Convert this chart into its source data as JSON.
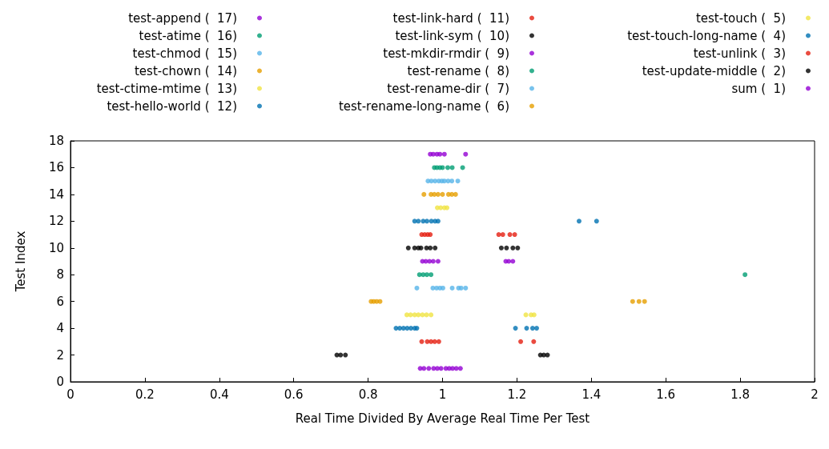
{
  "chart_data": {
    "type": "scatter",
    "xlabel": "Real Time Divided By Average Real Time Per Test",
    "ylabel": "Test Index",
    "xlim": [
      0,
      2
    ],
    "ylim": [
      0,
      18
    ],
    "xticks": [
      0,
      0.2,
      0.4,
      0.6,
      0.8,
      1,
      1.2,
      1.4,
      1.6,
      1.8,
      2
    ],
    "yticks": [
      0,
      2,
      4,
      6,
      8,
      10,
      12,
      14,
      16,
      18
    ],
    "grid": false,
    "legend": "top",
    "marker": "circle",
    "series": [
      {
        "name": "test-append (  17)",
        "color": "#9400d3",
        "x": [
          0.967,
          0.975,
          0.985,
          0.993,
          1.005,
          1.062
        ],
        "values": [
          17,
          17,
          17,
          17,
          17,
          17
        ]
      },
      {
        "name": "test-atime (  16)",
        "color": "#009e73",
        "x": [
          0.978,
          0.985,
          0.993,
          1.0,
          1.014,
          1.026,
          1.054
        ],
        "values": [
          16,
          16,
          16,
          16,
          16,
          16,
          16
        ]
      },
      {
        "name": "test-chmod (  15)",
        "color": "#56b4e9",
        "x": [
          0.961,
          0.97,
          0.98,
          0.99,
          0.998,
          1.005,
          1.015,
          1.025,
          1.041
        ],
        "values": [
          15,
          15,
          15,
          15,
          15,
          15,
          15,
          15,
          15
        ]
      },
      {
        "name": "test-chown (  14)",
        "color": "#e69f00",
        "x": [
          0.95,
          0.969,
          0.978,
          0.988,
          1.0,
          1.016,
          1.025,
          1.035
        ],
        "values": [
          14,
          14,
          14,
          14,
          14,
          14,
          14,
          14
        ]
      },
      {
        "name": "test-ctime-mtime (  13)",
        "color": "#f0e442",
        "x": [
          0.986,
          0.995,
          1.005,
          1.012
        ],
        "values": [
          13,
          13,
          13,
          13
        ]
      },
      {
        "name": "test-hello-world (  12)",
        "color": "#0072b2",
        "x": [
          0.925,
          0.935,
          0.948,
          0.958,
          0.97,
          0.98,
          0.988,
          1.367,
          1.414
        ],
        "values": [
          12,
          12,
          12,
          12,
          12,
          12,
          12,
          12,
          12
        ]
      },
      {
        "name": "test-link-hard (  11)",
        "color": "#e51e10",
        "x": [
          0.944,
          0.952,
          0.96,
          0.967,
          1.151,
          1.162,
          1.181,
          1.194
        ],
        "values": [
          11,
          11,
          11,
          11,
          11,
          11,
          11,
          11
        ]
      },
      {
        "name": "test-link-sym (  10)",
        "color": "#000000",
        "x": [
          0.908,
          0.925,
          0.935,
          0.942,
          0.957,
          0.967,
          0.98,
          1.158,
          1.172,
          1.189,
          1.202
        ],
        "values": [
          10,
          10,
          10,
          10,
          10,
          10,
          10,
          10,
          10,
          10,
          10
        ]
      },
      {
        "name": "test-mkdir-rmdir (  9)",
        "color": "#9400d3",
        "x": [
          0.946,
          0.955,
          0.965,
          0.975,
          0.988,
          1.17,
          1.178,
          1.189
        ],
        "values": [
          9,
          9,
          9,
          9,
          9,
          9,
          9,
          9
        ]
      },
      {
        "name": "test-rename (  8)",
        "color": "#009e73",
        "x": [
          0.938,
          0.948,
          0.958,
          0.969,
          1.813
        ],
        "values": [
          8,
          8,
          8,
          8,
          8
        ]
      },
      {
        "name": "test-rename-dir (  7)",
        "color": "#56b4e9",
        "x": [
          0.931,
          0.974,
          0.984,
          0.993,
          1.001,
          1.026,
          1.043,
          1.05,
          1.062
        ],
        "values": [
          7,
          7,
          7,
          7,
          7,
          7,
          7,
          7,
          7
        ]
      },
      {
        "name": "test-rename-long-name (  6)",
        "color": "#e69f00",
        "x": [
          0.808,
          0.815,
          0.823,
          0.832,
          1.511,
          1.528,
          1.543
        ],
        "values": [
          6,
          6,
          6,
          6,
          6,
          6,
          6
        ]
      },
      {
        "name": "test-touch (  5)",
        "color": "#f0e442",
        "x": [
          0.904,
          0.914,
          0.925,
          0.935,
          0.946,
          0.957,
          0.969,
          1.224,
          1.238,
          1.246
        ],
        "values": [
          5,
          5,
          5,
          5,
          5,
          5,
          5,
          5,
          5,
          5
        ]
      },
      {
        "name": "test-touch-long-name (  4)",
        "color": "#0072b2",
        "x": [
          0.875,
          0.885,
          0.895,
          0.905,
          0.915,
          0.925,
          0.931,
          1.196,
          1.226,
          1.242,
          1.253
        ],
        "values": [
          4,
          4,
          4,
          4,
          4,
          4,
          4,
          4,
          4,
          4,
          4
        ]
      },
      {
        "name": "test-unlink (  3)",
        "color": "#e51e10",
        "x": [
          0.944,
          0.959,
          0.969,
          0.979,
          0.99,
          1.21,
          1.245
        ],
        "values": [
          3,
          3,
          3,
          3,
          3,
          3,
          3
        ]
      },
      {
        "name": "test-update-middle (  2)",
        "color": "#000000",
        "x": [
          0.716,
          0.726,
          0.739,
          1.263,
          1.272,
          1.282
        ],
        "values": [
          2,
          2,
          2,
          2,
          2,
          2
        ]
      },
      {
        "name": "sum (  1)",
        "color": "#9400d3",
        "x": [
          0.94,
          0.95,
          0.963,
          0.976,
          0.986,
          0.996,
          1.009,
          1.018,
          1.027,
          1.037,
          1.048
        ],
        "values": [
          1,
          1,
          1,
          1,
          1,
          1,
          1,
          1,
          1,
          1,
          1
        ]
      }
    ]
  }
}
